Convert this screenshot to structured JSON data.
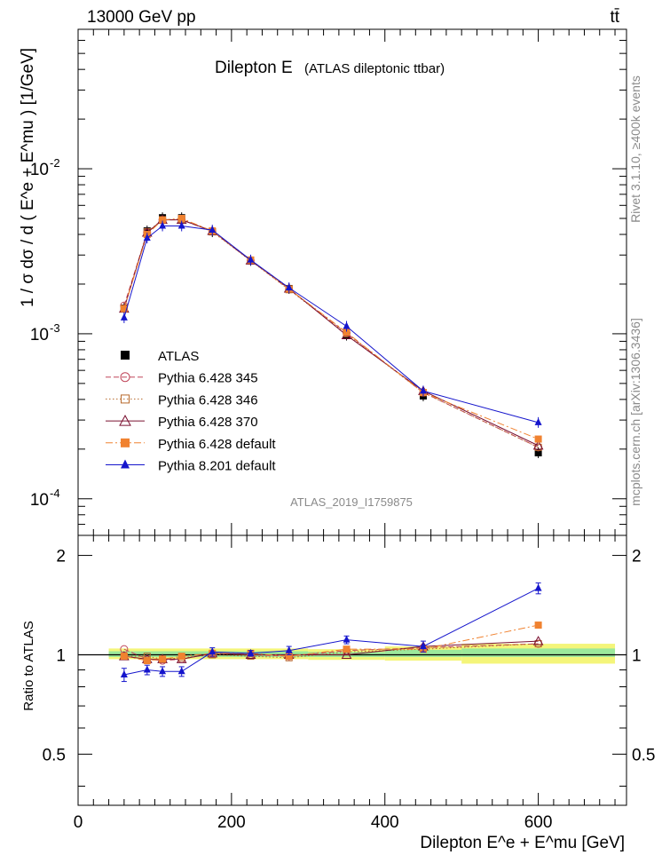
{
  "header": {
    "energy_label": "13000 GeV pp",
    "process_label": "tt̄",
    "rivet_label": "Rivet 3.1.10, ≥400k events",
    "mcplots_label": "mcplots.cern.ch [arXiv:1306.3436]"
  },
  "chart_data": [
    {
      "type": "line",
      "panel": "main",
      "title": "Dilepton E",
      "subtitle": "(ATLAS dileptonic ttbar)",
      "ylabel": "1 / σ dσ / d ( E^e + E^mu ) [1/GeV]",
      "xlabel": "",
      "yscale": "log",
      "xlim": [
        0,
        715
      ],
      "ylim": [
        6e-05,
        0.07
      ],
      "y_ticks": [
        "10^-4",
        "10^-3",
        "10^-2"
      ],
      "analysis_label": "ATLAS_2019_I1759875",
      "legend_position": "middle-left",
      "x": [
        60,
        90,
        110,
        135,
        175,
        225,
        275,
        350,
        450,
        600
      ],
      "x_err": [
        [
          40,
          80
        ],
        [
          80,
          100
        ],
        [
          100,
          120
        ],
        [
          120,
          150
        ],
        [
          150,
          200
        ],
        [
          200,
          250
        ],
        [
          250,
          300
        ],
        [
          300,
          400
        ],
        [
          400,
          500
        ],
        [
          500,
          700
        ]
      ],
      "series": [
        {
          "name": "ATLAS",
          "color": "#000000",
          "marker": "square-filled",
          "line": "none",
          "values": [
            0.00143,
            0.0042,
            0.00505,
            0.00505,
            0.00415,
            0.00278,
            0.00188,
            0.00098,
            0.00042,
            0.00019
          ]
        },
        {
          "name": "Pythia 6.428 345",
          "color": "#c0465a",
          "marker": "circle-open",
          "line": "dashed",
          "values": [
            0.00148,
            0.0041,
            0.0049,
            0.0049,
            0.00418,
            0.00278,
            0.00186,
            0.00101,
            0.00044,
            0.000205
          ]
        },
        {
          "name": "Pythia 6.428 346",
          "color": "#b8692c",
          "marker": "square-open",
          "line": "dotted",
          "values": [
            0.00142,
            0.00415,
            0.0049,
            0.00495,
            0.00415,
            0.00277,
            0.00185,
            0.001,
            0.00044,
            0.000205
          ]
        },
        {
          "name": "Pythia 6.428 370",
          "color": "#7a1030",
          "marker": "triangle-open",
          "line": "solid",
          "values": [
            0.00142,
            0.0041,
            0.0049,
            0.0049,
            0.0042,
            0.00278,
            0.00188,
            0.00098,
            0.00045,
            0.00021
          ]
        },
        {
          "name": "Pythia 6.428 default",
          "color": "#f08230",
          "marker": "square-filled",
          "line": "dashdot",
          "values": [
            0.00142,
            0.004,
            0.0049,
            0.005,
            0.0042,
            0.0028,
            0.00187,
            0.00102,
            0.00044,
            0.00023
          ]
        },
        {
          "name": "Pythia 8.201 default",
          "color": "#1515cc",
          "marker": "triangle-filled",
          "line": "solid",
          "values": [
            0.00125,
            0.0038,
            0.0045,
            0.0045,
            0.00425,
            0.0028,
            0.0019,
            0.00111,
            0.00045,
            0.00029
          ]
        }
      ]
    },
    {
      "type": "line",
      "panel": "ratio",
      "ylabel": "Ratio to ATLAS",
      "xlabel": "Dilepton E^e + E^mu [GeV]",
      "xlim": [
        0,
        715
      ],
      "ylim": [
        0.35,
        2.3
      ],
      "y_ticks": [
        "0.5",
        "1",
        "2"
      ],
      "x_ticks": [
        "0",
        "200",
        "400",
        "600"
      ],
      "x": [
        60,
        90,
        110,
        135,
        175,
        225,
        275,
        350,
        450,
        600
      ],
      "band_inner": [
        {
          "x": [
            40,
            300
          ],
          "lo": 0.985,
          "hi": 1.025
        },
        {
          "x": [
            300,
            400
          ],
          "lo": 0.985,
          "hi": 1.02
        },
        {
          "x": [
            400,
            500
          ],
          "lo": 0.985,
          "hi": 1.035
        },
        {
          "x": [
            500,
            700
          ],
          "lo": 0.985,
          "hi": 1.045
        }
      ],
      "band_outer": [
        {
          "x": [
            40,
            300
          ],
          "lo": 0.97,
          "hi": 1.045
        },
        {
          "x": [
            300,
            400
          ],
          "lo": 0.965,
          "hi": 1.04
        },
        {
          "x": [
            400,
            500
          ],
          "lo": 0.96,
          "hi": 1.06
        },
        {
          "x": [
            500,
            700
          ],
          "lo": 0.94,
          "hi": 1.08
        }
      ],
      "series": [
        {
          "name": "Pythia 6.428 345",
          "values": [
            1.04,
            0.97,
            0.96,
            0.97,
            1.01,
            1.0,
            0.99,
            1.03,
            1.05,
            1.08
          ]
        },
        {
          "name": "Pythia 6.428 346",
          "values": [
            0.99,
            0.99,
            0.97,
            0.98,
            1.0,
            0.99,
            0.98,
            1.02,
            1.04,
            1.08
          ]
        },
        {
          "name": "Pythia 6.428 370",
          "values": [
            0.99,
            0.97,
            0.97,
            0.97,
            1.01,
            1.0,
            1.0,
            1.0,
            1.06,
            1.1
          ]
        },
        {
          "name": "Pythia 6.428 default",
          "values": [
            0.99,
            0.96,
            0.97,
            0.99,
            1.01,
            1.01,
            0.99,
            1.04,
            1.04,
            1.23
          ]
        },
        {
          "name": "Pythia 8.201 default",
          "values": [
            0.87,
            0.9,
            0.89,
            0.89,
            1.02,
            1.01,
            1.03,
            1.11,
            1.06,
            1.59
          ],
          "errors": [
            0.04,
            0.03,
            0.03,
            0.03,
            0.03,
            0.02,
            0.03,
            0.03,
            0.04,
            0.06
          ]
        }
      ]
    }
  ]
}
